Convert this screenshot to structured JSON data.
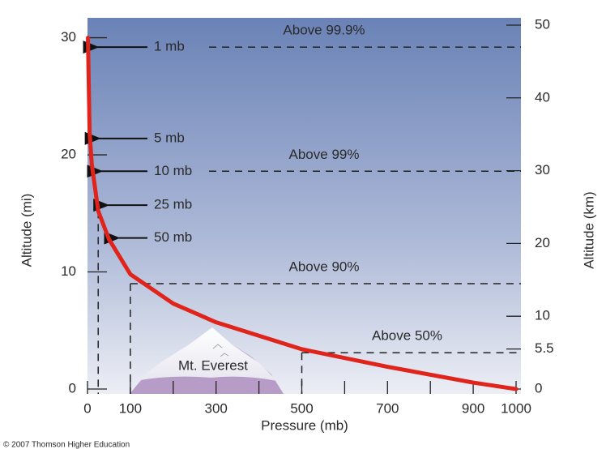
{
  "chart_data": {
    "type": "line",
    "xlabel": "Pressure (mb)",
    "ylabel": "Altitude (mi)",
    "y2label": "Altitude (km)",
    "xlim": [
      0,
      1000
    ],
    "xticks": [
      0,
      100,
      300,
      500,
      700,
      900,
      1000
    ],
    "x_minor_ticks": [
      200,
      400,
      600,
      800
    ],
    "ylim": [
      0,
      31.7
    ],
    "yticks": [
      0,
      10,
      20,
      30
    ],
    "y2lim": [
      0,
      51
    ],
    "y2ticks": [
      0,
      5.5,
      10,
      20,
      30,
      40,
      50
    ],
    "series": [
      {
        "color": "#e0241b",
        "x": [
          1,
          5,
          10,
          25,
          50,
          100,
          200,
          300,
          500,
          700,
          900,
          1000
        ],
        "values": [
          30,
          21.9,
          19.2,
          15.2,
          12.8,
          9.8,
          7.3,
          5.7,
          3.4,
          1.9,
          0.55,
          0
        ]
      }
    ],
    "pressure_labels": [
      {
        "text": "1 mb",
        "pressure": 1,
        "altitude": 29.2
      },
      {
        "text": "5 mb",
        "pressure": 5,
        "altitude": 21.4
      },
      {
        "text": "10 mb",
        "pressure": 10,
        "altitude": 18.6
      },
      {
        "text": "25 mb",
        "pressure": 25,
        "altitude": 15.7
      },
      {
        "text": "50 mb",
        "pressure": 50,
        "altitude": 12.9
      }
    ],
    "levels": [
      {
        "label": "Above 99.9%",
        "pressure": 1,
        "altitude": 29.2
      },
      {
        "label": "Above 99%",
        "pressure": 10,
        "altitude": 18.6
      },
      {
        "label": "Above 90%",
        "pressure": 100,
        "altitude": 9
      },
      {
        "label": "Above 50%",
        "pressure": 500,
        "altitude": 3.1
      }
    ],
    "drops": [
      {
        "pressure": 25,
        "altitude": 15.2
      },
      {
        "pressure": 100,
        "altitude": 9
      },
      {
        "pressure": 500,
        "altitude": 3.1
      }
    ],
    "mountain_label": "Mt. Everest",
    "credit": "© 2007 Thomson Higher Education"
  }
}
